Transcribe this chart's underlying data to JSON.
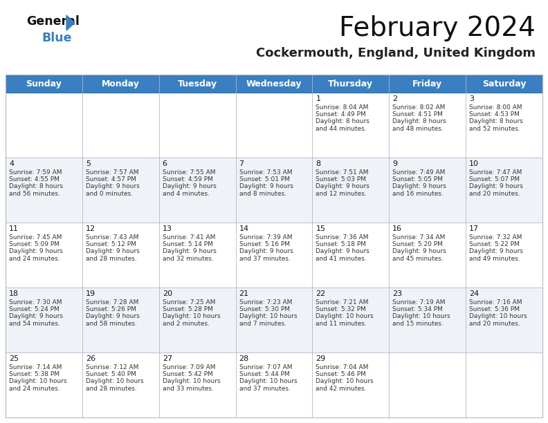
{
  "title": "February 2024",
  "subtitle": "Cockermouth, England, United Kingdom",
  "header_bg": "#3a7fc1",
  "header_text": "#ffffff",
  "row_bg_odd": "#ffffff",
  "row_bg_even": "#eff3f8",
  "grid_line": "#b0b8c8",
  "days_of_week": [
    "Sunday",
    "Monday",
    "Tuesday",
    "Wednesday",
    "Thursday",
    "Friday",
    "Saturday"
  ],
  "calendar": [
    [
      "",
      "",
      "",
      "",
      "1",
      "2",
      "3"
    ],
    [
      "4",
      "5",
      "6",
      "7",
      "8",
      "9",
      "10"
    ],
    [
      "11",
      "12",
      "13",
      "14",
      "15",
      "16",
      "17"
    ],
    [
      "18",
      "19",
      "20",
      "21",
      "22",
      "23",
      "24"
    ],
    [
      "25",
      "26",
      "27",
      "28",
      "29",
      "",
      ""
    ]
  ],
  "cell_data": {
    "1": {
      "sunrise": "8:04 AM",
      "sunset": "4:49 PM",
      "daylight": "8 hours and 44 minutes."
    },
    "2": {
      "sunrise": "8:02 AM",
      "sunset": "4:51 PM",
      "daylight": "8 hours and 48 minutes."
    },
    "3": {
      "sunrise": "8:00 AM",
      "sunset": "4:53 PM",
      "daylight": "8 hours and 52 minutes."
    },
    "4": {
      "sunrise": "7:59 AM",
      "sunset": "4:55 PM",
      "daylight": "8 hours and 56 minutes."
    },
    "5": {
      "sunrise": "7:57 AM",
      "sunset": "4:57 PM",
      "daylight": "9 hours and 0 minutes."
    },
    "6": {
      "sunrise": "7:55 AM",
      "sunset": "4:59 PM",
      "daylight": "9 hours and 4 minutes."
    },
    "7": {
      "sunrise": "7:53 AM",
      "sunset": "5:01 PM",
      "daylight": "9 hours and 8 minutes."
    },
    "8": {
      "sunrise": "7:51 AM",
      "sunset": "5:03 PM",
      "daylight": "9 hours and 12 minutes."
    },
    "9": {
      "sunrise": "7:49 AM",
      "sunset": "5:05 PM",
      "daylight": "9 hours and 16 minutes."
    },
    "10": {
      "sunrise": "7:47 AM",
      "sunset": "5:07 PM",
      "daylight": "9 hours and 20 minutes."
    },
    "11": {
      "sunrise": "7:45 AM",
      "sunset": "5:09 PM",
      "daylight": "9 hours and 24 minutes."
    },
    "12": {
      "sunrise": "7:43 AM",
      "sunset": "5:12 PM",
      "daylight": "9 hours and 28 minutes."
    },
    "13": {
      "sunrise": "7:41 AM",
      "sunset": "5:14 PM",
      "daylight": "9 hours and 32 minutes."
    },
    "14": {
      "sunrise": "7:39 AM",
      "sunset": "5:16 PM",
      "daylight": "9 hours and 37 minutes."
    },
    "15": {
      "sunrise": "7:36 AM",
      "sunset": "5:18 PM",
      "daylight": "9 hours and 41 minutes."
    },
    "16": {
      "sunrise": "7:34 AM",
      "sunset": "5:20 PM",
      "daylight": "9 hours and 45 minutes."
    },
    "17": {
      "sunrise": "7:32 AM",
      "sunset": "5:22 PM",
      "daylight": "9 hours and 49 minutes."
    },
    "18": {
      "sunrise": "7:30 AM",
      "sunset": "5:24 PM",
      "daylight": "9 hours and 54 minutes."
    },
    "19": {
      "sunrise": "7:28 AM",
      "sunset": "5:26 PM",
      "daylight": "9 hours and 58 minutes."
    },
    "20": {
      "sunrise": "7:25 AM",
      "sunset": "5:28 PM",
      "daylight": "10 hours and 2 minutes."
    },
    "21": {
      "sunrise": "7:23 AM",
      "sunset": "5:30 PM",
      "daylight": "10 hours and 7 minutes."
    },
    "22": {
      "sunrise": "7:21 AM",
      "sunset": "5:32 PM",
      "daylight": "10 hours and 11 minutes."
    },
    "23": {
      "sunrise": "7:19 AM",
      "sunset": "5:34 PM",
      "daylight": "10 hours and 15 minutes."
    },
    "24": {
      "sunrise": "7:16 AM",
      "sunset": "5:36 PM",
      "daylight": "10 hours and 20 minutes."
    },
    "25": {
      "sunrise": "7:14 AM",
      "sunset": "5:38 PM",
      "daylight": "10 hours and 24 minutes."
    },
    "26": {
      "sunrise": "7:12 AM",
      "sunset": "5:40 PM",
      "daylight": "10 hours and 28 minutes."
    },
    "27": {
      "sunrise": "7:09 AM",
      "sunset": "5:42 PM",
      "daylight": "10 hours and 33 minutes."
    },
    "28": {
      "sunrise": "7:07 AM",
      "sunset": "5:44 PM",
      "daylight": "10 hours and 37 minutes."
    },
    "29": {
      "sunrise": "7:04 AM",
      "sunset": "5:46 PM",
      "daylight": "10 hours and 42 minutes."
    }
  },
  "logo_general_color": "#111111",
  "logo_blue_color": "#3a7fc1",
  "logo_triangle_color": "#3a7fc1",
  "title_fontsize": 28,
  "subtitle_fontsize": 13,
  "header_fontsize": 9,
  "day_num_fontsize": 8,
  "cell_text_fontsize": 6.5
}
